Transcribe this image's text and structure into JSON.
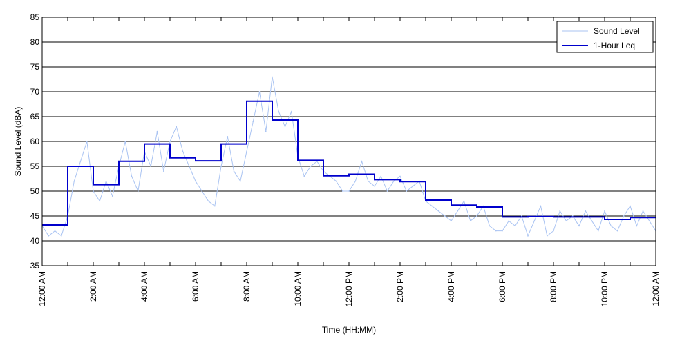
{
  "chart_data": {
    "type": "line",
    "title": "",
    "xlabel": "Time (HH:MM)",
    "ylabel": "Sound Level (dBA)",
    "xlim": [
      "12:00 AM",
      "12:00 AM (+24h)"
    ],
    "ylim": [
      35,
      85
    ],
    "y_ticks": [
      35,
      40,
      45,
      50,
      55,
      60,
      65,
      70,
      75,
      80,
      85
    ],
    "x_tick_labels": [
      "12:00 AM",
      "2:00 AM",
      "4:00 AM",
      "6:00 AM",
      "8:00 AM",
      "10:00 AM",
      "12:00 PM",
      "2:00 PM",
      "4:00 PM",
      "6:00 PM",
      "8:00 PM",
      "10:00 PM",
      "12:00 AM"
    ],
    "grid": "horizontal",
    "legend_position": "top-right",
    "colors": {
      "sound_level": "#a9c3f2",
      "leq": "#0000cc",
      "grid": "#000000"
    },
    "series": [
      {
        "name": "Sound Level",
        "x_hours": [
          0,
          0.25,
          0.5,
          0.75,
          1,
          1.25,
          1.5,
          1.75,
          2,
          2.25,
          2.5,
          2.75,
          3,
          3.25,
          3.5,
          3.75,
          4,
          4.25,
          4.5,
          4.75,
          5,
          5.25,
          5.5,
          5.75,
          6,
          6.25,
          6.5,
          6.75,
          7,
          7.25,
          7.5,
          7.75,
          8,
          8.25,
          8.5,
          8.75,
          9,
          9.25,
          9.5,
          9.75,
          10,
          10.25,
          10.5,
          10.75,
          11,
          11.25,
          11.5,
          11.75,
          12,
          12.25,
          12.5,
          12.75,
          13,
          13.25,
          13.5,
          13.75,
          14,
          14.25,
          14.5,
          14.75,
          15,
          15.25,
          15.5,
          15.75,
          16,
          16.25,
          16.5,
          16.75,
          17,
          17.25,
          17.5,
          17.75,
          18,
          18.25,
          18.5,
          18.75,
          19,
          19.25,
          19.5,
          19.75,
          20,
          20.25,
          20.5,
          20.75,
          21,
          21.25,
          21.5,
          21.75,
          22,
          22.25,
          22.5,
          22.75,
          23,
          23.25,
          23.5,
          23.75,
          24
        ],
        "values": [
          43,
          41,
          42,
          41,
          45,
          52,
          56,
          60,
          50,
          48,
          52,
          49,
          55,
          60,
          53,
          50,
          58,
          55,
          62,
          54,
          60,
          63,
          58,
          55,
          52,
          50,
          48,
          47,
          55,
          61,
          54,
          52,
          58,
          64,
          70,
          62,
          73,
          66,
          63,
          66,
          57,
          53,
          55,
          56,
          54,
          53,
          52,
          50,
          50,
          52,
          56,
          52,
          51,
          53,
          50,
          52,
          53,
          50,
          51,
          52,
          48,
          47,
          46,
          45,
          44,
          46,
          48,
          44,
          45,
          47,
          43,
          42,
          42,
          44,
          43,
          45,
          41,
          44,
          47,
          41,
          42,
          46,
          44,
          45,
          43,
          46,
          44,
          42,
          46,
          43,
          42,
          45,
          47,
          43,
          46,
          44,
          42
        ]
      },
      {
        "name": "1-Hour Leq",
        "step": true,
        "x_hours": [
          0,
          1,
          2,
          3,
          4,
          5,
          6,
          7,
          8,
          9,
          10,
          11,
          12,
          13,
          14,
          15,
          16,
          17,
          18,
          19,
          20,
          21,
          22,
          23
        ],
        "values": [
          43.2,
          55,
          51.3,
          56,
          59.5,
          56.7,
          56.1,
          59.5,
          68.1,
          64.3,
          56.2,
          53.1,
          53.4,
          52.3,
          51.9,
          48.2,
          47.2,
          46.8,
          44.8,
          44.9,
          44.8,
          44.8,
          44.3,
          44.7
        ]
      }
    ]
  }
}
